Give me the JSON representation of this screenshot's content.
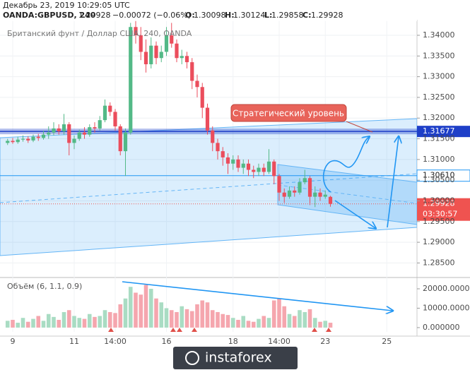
{
  "chart_data": {
    "type": "candlestick",
    "header": {
      "datetime": "Декабрь 23, 2019 10:29:05 UTC",
      "symbol": "OANDA:GBPUSD, 240",
      "last": "1.29928",
      "change": "−0.00072 (−0.06%)",
      "ohlc": [
        {
          "label": "O:",
          "value": "1.30098"
        },
        {
          "label": "H:",
          "value": "1.30124"
        },
        {
          "label": "L:",
          "value": "1.29858"
        },
        {
          "label": "C:",
          "value": "1.29928"
        }
      ]
    },
    "title": "Британский фунт / Доллар США, 240, OANDA",
    "annotation": "Стратегический уровень",
    "up_color": "#53b987",
    "down_color": "#eb4d5c",
    "categories": [
      null,
      "9",
      null,
      null,
      null,
      null,
      null,
      null,
      null,
      null,
      null,
      null,
      null,
      "11",
      null,
      null,
      null,
      null,
      null,
      null,
      null,
      "14:00",
      null,
      null,
      null,
      null,
      null,
      null,
      null,
      null,
      null,
      "16",
      null,
      null,
      null,
      null,
      null,
      null,
      null,
      null,
      null,
      null,
      null,
      null,
      "18",
      null,
      null,
      null,
      null,
      null,
      null,
      null,
      null,
      "14:00",
      null,
      null,
      null,
      null,
      null,
      null,
      null,
      null,
      "23",
      null,
      null,
      null,
      null,
      null,
      null,
      null,
      null,
      null,
      null,
      null,
      "25",
      null,
      null,
      null,
      null,
      null
    ],
    "open": [
      1.314,
      1.3145,
      1.3142,
      1.3148,
      1.315,
      1.3146,
      1.3155,
      1.3152,
      1.316,
      1.3165,
      1.3175,
      1.3168,
      1.3185,
      1.314,
      1.315,
      1.3165,
      1.316,
      1.3178,
      1.3175,
      1.3195,
      1.323,
      1.3215,
      1.318,
      1.312,
      1.3165,
      1.342,
      1.34,
      1.336,
      1.333,
      1.3375,
      1.3345,
      1.336,
      1.34,
      1.338,
      1.3345,
      1.335,
      1.3335,
      1.329,
      1.3275,
      1.3225,
      1.317,
      1.314,
      1.312,
      1.3105,
      1.309,
      1.31,
      1.308,
      1.309,
      1.3075,
      1.307,
      1.308,
      1.307,
      1.3095,
      1.306,
      1.302,
      1.301,
      1.3025,
      1.302,
      1.3045,
      1.3055,
      1.301,
      1.302,
      1.301,
      1.30098,
      null,
      null,
      null,
      null,
      null,
      null,
      null,
      null,
      null,
      null,
      null,
      null,
      null,
      null,
      null,
      null
    ],
    "high": [
      1.315,
      1.3152,
      1.3155,
      1.3158,
      1.3156,
      1.316,
      1.3162,
      1.317,
      1.318,
      1.319,
      1.3185,
      1.321,
      1.319,
      1.3158,
      1.3172,
      1.3178,
      1.3185,
      1.319,
      1.3205,
      1.3245,
      1.3238,
      1.3222,
      1.3185,
      1.3175,
      1.343,
      1.344,
      1.342,
      1.339,
      1.3395,
      1.3385,
      1.3375,
      1.342,
      1.343,
      1.339,
      1.3365,
      1.336,
      1.3345,
      1.3305,
      1.3285,
      1.3235,
      1.318,
      1.315,
      1.313,
      1.3115,
      1.311,
      1.311,
      1.31,
      1.31,
      1.3085,
      1.309,
      1.309,
      1.3125,
      1.31,
      1.3065,
      1.303,
      1.3035,
      1.3035,
      1.3055,
      1.3075,
      1.306,
      1.3035,
      1.303,
      1.3025,
      1.30124,
      null,
      null,
      null,
      null,
      null,
      null,
      null,
      null,
      null,
      null,
      null,
      null,
      null,
      null,
      null,
      null
    ],
    "low": [
      1.3135,
      1.3138,
      1.3138,
      1.3143,
      1.314,
      1.3142,
      1.3145,
      1.3148,
      1.315,
      1.3158,
      1.316,
      1.316,
      1.311,
      1.3125,
      1.3145,
      1.315,
      1.3155,
      1.3165,
      1.317,
      1.319,
      1.3205,
      1.317,
      1.311,
      1.306,
      1.316,
      1.338,
      1.334,
      1.331,
      1.332,
      1.333,
      1.3335,
      1.335,
      1.337,
      1.3335,
      1.333,
      1.332,
      1.327,
      1.325,
      1.32,
      1.316,
      1.312,
      1.31,
      1.3085,
      1.3065,
      1.3075,
      1.307,
      1.3065,
      1.306,
      1.3055,
      1.306,
      1.306,
      1.3065,
      1.304,
      1.3,
      1.2995,
      1.3005,
      1.301,
      1.3015,
      1.304,
      1.299,
      1.2985,
      1.3,
      1.3005,
      1.29858,
      null,
      null,
      null,
      null,
      null,
      null,
      null,
      null,
      null,
      null,
      null,
      null,
      null,
      null,
      null,
      null
    ],
    "close": [
      1.3145,
      1.3142,
      1.3148,
      1.315,
      1.3146,
      1.3155,
      1.3152,
      1.316,
      1.3165,
      1.3175,
      1.3168,
      1.3185,
      1.314,
      1.315,
      1.3165,
      1.316,
      1.3178,
      1.3175,
      1.3195,
      1.323,
      1.3215,
      1.318,
      1.312,
      1.3165,
      1.342,
      1.34,
      1.336,
      1.333,
      1.3375,
      1.3345,
      1.336,
      1.34,
      1.338,
      1.3345,
      1.335,
      1.3335,
      1.329,
      1.3275,
      1.3225,
      1.317,
      1.314,
      1.312,
      1.3105,
      1.309,
      1.31,
      1.308,
      1.309,
      1.3075,
      1.307,
      1.308,
      1.307,
      1.3095,
      1.306,
      1.302,
      1.301,
      1.3025,
      1.302,
      1.3045,
      1.3055,
      1.301,
      1.302,
      1.301,
      1.3015,
      1.29928,
      null,
      null,
      null,
      null,
      null,
      null,
      null,
      null,
      null,
      null,
      null,
      null,
      null,
      null,
      null,
      null
    ],
    "ylim": [
      1.282,
      1.34375
    ],
    "yticks": [
      {
        "value": 1.285,
        "label": "1.28500"
      },
      {
        "value": 1.29,
        "label": "1.29000"
      },
      {
        "value": 1.295,
        "label": "1.29500"
      },
      {
        "value": 1.3,
        "label": "1.30000"
      },
      {
        "value": 1.305,
        "label": "1.30500"
      },
      {
        "value": 1.31,
        "label": "1.31000"
      },
      {
        "value": 1.315,
        "label": "1.31500"
      },
      {
        "value": 1.32,
        "label": "1.32000"
      },
      {
        "value": 1.325,
        "label": "1.32500"
      },
      {
        "value": 1.33,
        "label": "1.33000"
      },
      {
        "value": 1.335,
        "label": "1.33500"
      },
      {
        "value": 1.34,
        "label": "1.34000"
      }
    ],
    "grid": true,
    "levels": [
      {
        "value": 1.31677,
        "label": "1.31677",
        "color": "#1e3fc8"
      },
      {
        "value": 1.3061,
        "label": "1.30610",
        "color": "#2196f3"
      },
      {
        "value": 1.29928,
        "label": "1.29928",
        "color": "#ef5350"
      }
    ],
    "countdown": "03:30:57",
    "volume": {
      "title": "Объём (6, 1.1, 0.9)",
      "up_color": "#a9dcc3",
      "down_color": "#f5a6ae",
      "values": [
        3500,
        4000,
        2500,
        5000,
        3000,
        4500,
        6000,
        3500,
        7000,
        5500,
        4000,
        8000,
        9000,
        6000,
        5000,
        4500,
        7000,
        5500,
        6000,
        9000,
        8000,
        7500,
        12000,
        15000,
        21000,
        18000,
        17000,
        22000,
        20000,
        15000,
        13000,
        10000,
        9000,
        8000,
        11000,
        9500,
        8500,
        12000,
        14000,
        13000,
        9000,
        8000,
        7000,
        6500,
        5000,
        4000,
        6000,
        3500,
        3000,
        4500,
        6000,
        5000,
        14000,
        15000,
        11000,
        7000,
        6000,
        9000,
        8000,
        9500,
        5000,
        3000,
        3500,
        2500,
        null,
        null,
        null,
        null,
        null,
        null,
        null,
        null,
        null,
        null,
        null,
        null,
        null,
        null,
        null,
        null
      ],
      "ylim": [
        -2200,
        24000
      ],
      "yticks": [
        {
          "value": 0,
          "label": "0.000000"
        },
        {
          "value": 10000,
          "label": "10000.000000"
        },
        {
          "value": 20000,
          "label": "20000.000000"
        }
      ]
    },
    "watermark": "instaforex"
  }
}
